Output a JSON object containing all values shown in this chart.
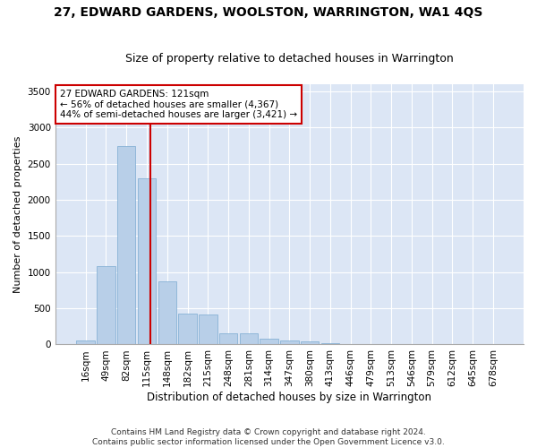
{
  "title": "27, EDWARD GARDENS, WOOLSTON, WARRINGTON, WA1 4QS",
  "subtitle": "Size of property relative to detached houses in Warrington",
  "xlabel": "Distribution of detached houses by size in Warrington",
  "ylabel": "Number of detached properties",
  "background_color": "#dce6f5",
  "fig_background": "#ffffff",
  "bar_color": "#b8cfe8",
  "bar_edge_color": "#7aaad0",
  "vline_color": "#cc0000",
  "annotation_text": "27 EDWARD GARDENS: 121sqm\n← 56% of detached houses are smaller (4,367)\n44% of semi-detached houses are larger (3,421) →",
  "annotation_box_color": "#ffffff",
  "annotation_box_edge": "#cc0000",
  "categories": [
    "16sqm",
    "49sqm",
    "82sqm",
    "115sqm",
    "148sqm",
    "182sqm",
    "215sqm",
    "248sqm",
    "281sqm",
    "314sqm",
    "347sqm",
    "380sqm",
    "413sqm",
    "446sqm",
    "479sqm",
    "513sqm",
    "546sqm",
    "579sqm",
    "612sqm",
    "645sqm",
    "678sqm"
  ],
  "values": [
    50,
    1090,
    2750,
    2300,
    870,
    430,
    415,
    155,
    150,
    80,
    50,
    40,
    18,
    10,
    5,
    2,
    1,
    1,
    1,
    1,
    1
  ],
  "ylim": [
    0,
    3600
  ],
  "yticks": [
    0,
    500,
    1000,
    1500,
    2000,
    2500,
    3000,
    3500
  ],
  "footer": "Contains HM Land Registry data © Crown copyright and database right 2024.\nContains public sector information licensed under the Open Government Licence v3.0.",
  "title_fontsize": 10,
  "subtitle_fontsize": 9,
  "xlabel_fontsize": 8.5,
  "ylabel_fontsize": 8,
  "tick_fontsize": 7.5,
  "footer_fontsize": 6.5,
  "ann_fontsize": 7.5
}
